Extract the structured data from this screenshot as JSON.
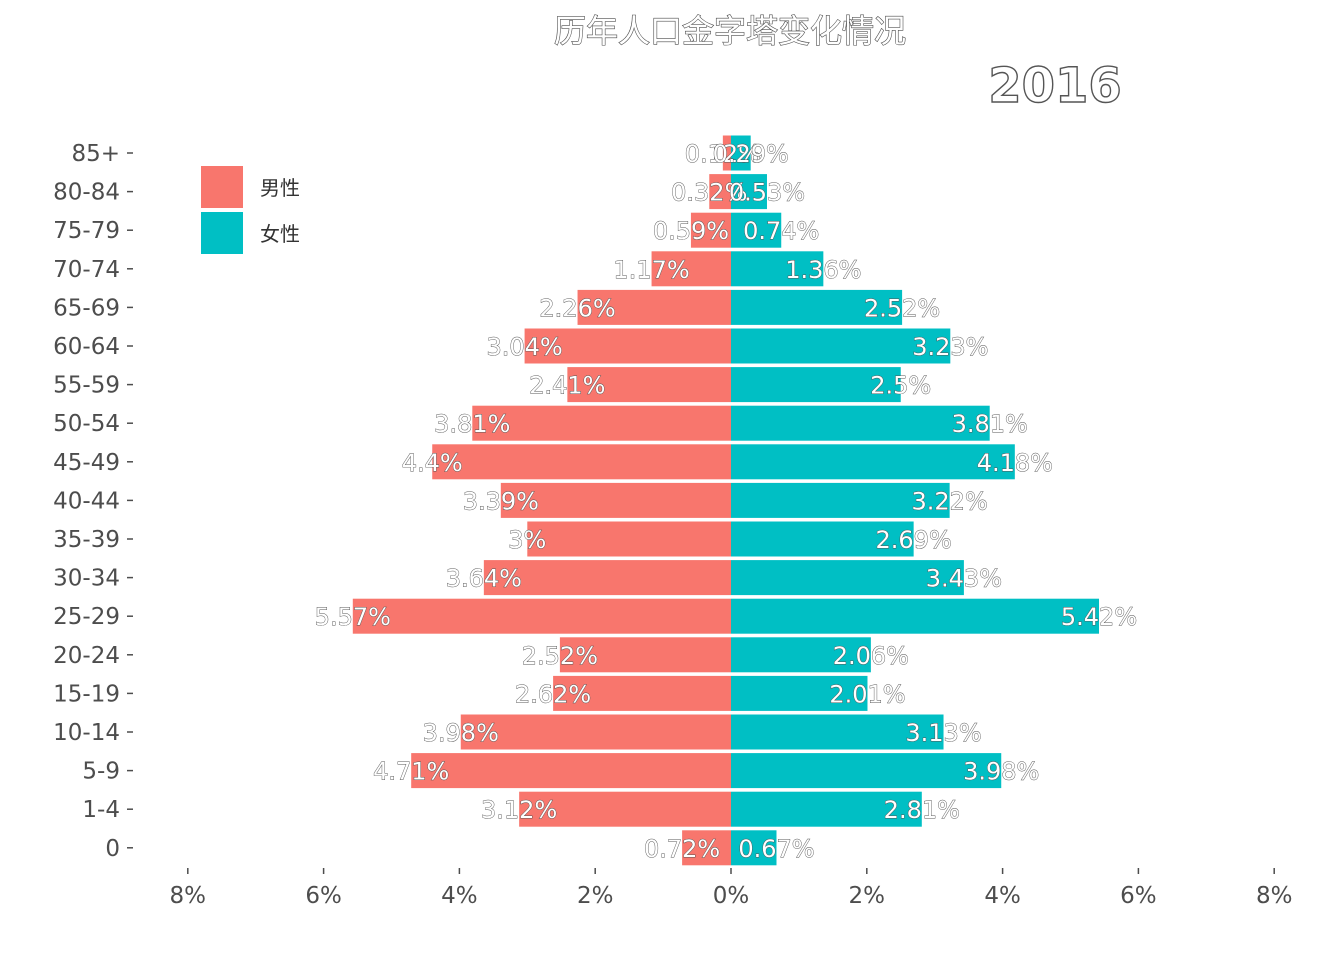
{
  "chart_data": {
    "type": "bar",
    "orientation": "horizontal",
    "title": "历年人口金字塔变化情况",
    "annotation": "2016",
    "categories": [
      "85+",
      "80-84",
      "75-79",
      "70-74",
      "65-69",
      "60-64",
      "55-59",
      "50-54",
      "45-49",
      "40-44",
      "35-39",
      "30-34",
      "25-29",
      "20-24",
      "15-19",
      "10-14",
      "5-9",
      "1-4",
      "0"
    ],
    "series": [
      {
        "name": "男性",
        "side": "left",
        "color": "#F8766D",
        "values": [
          0.12,
          0.32,
          0.59,
          1.17,
          2.26,
          3.04,
          2.41,
          3.81,
          4.4,
          3.39,
          3.0,
          3.64,
          5.57,
          2.52,
          2.62,
          3.98,
          4.71,
          3.12,
          0.72
        ],
        "labels": [
          "0.12%",
          "0.32%",
          "0.59%",
          "1.17%",
          "2.26%",
          "3.04%",
          "2.41%",
          "3.81%",
          "4.4%",
          "3.39%",
          "3%",
          "3.64%",
          "5.57%",
          "2.52%",
          "2.62%",
          "3.98%",
          "4.71%",
          "3.12%",
          "0.72%"
        ]
      },
      {
        "name": "女性",
        "side": "right",
        "color": "#00BFC4",
        "values": [
          0.29,
          0.53,
          0.74,
          1.36,
          2.52,
          3.23,
          2.5,
          3.81,
          4.18,
          3.22,
          2.69,
          3.43,
          5.42,
          2.06,
          2.01,
          3.13,
          3.98,
          2.81,
          0.67
        ],
        "labels": [
          "0.29%",
          "0.53%",
          "0.74%",
          "1.36%",
          "2.52%",
          "3.23%",
          "2.5%",
          "3.81%",
          "4.18%",
          "3.22%",
          "2.69%",
          "3.43%",
          "5.42%",
          "2.06%",
          "2.01%",
          "3.13%",
          "3.98%",
          "2.81%",
          "0.67%"
        ]
      }
    ],
    "xlim": [
      -8,
      8
    ],
    "xticks": [
      -8,
      -6,
      -4,
      -2,
      0,
      2,
      4,
      6,
      8
    ],
    "xtick_labels": [
      "8%",
      "6%",
      "4%",
      "2%",
      "0%",
      "2%",
      "4%",
      "6%",
      "8%"
    ],
    "legend_position": "top-left",
    "grid": false
  }
}
